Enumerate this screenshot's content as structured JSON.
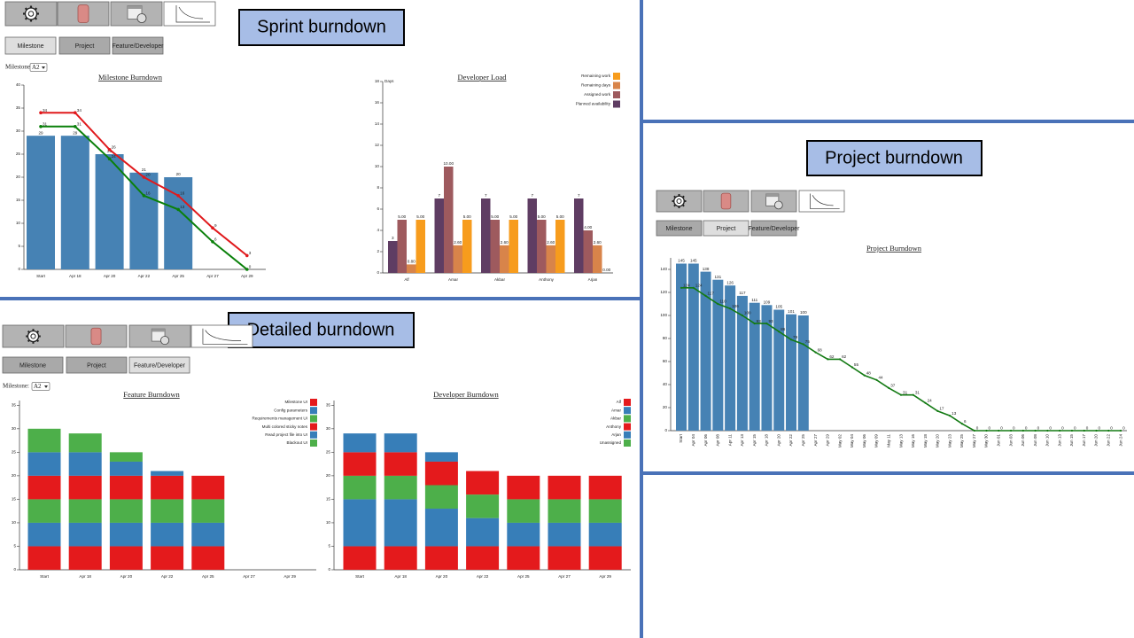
{
  "captions": [
    "Sprint burndown",
    "Detailed burndown",
    "Project burndown"
  ],
  "toolbars": [
    {
      "buttons": [
        "Milestone",
        "Project",
        "Feature/Developer"
      ]
    },
    {
      "buttons": [
        "Milestone",
        "Project",
        "Feature/Developer"
      ]
    },
    {
      "buttons": [
        "Milestone",
        "Project",
        "Feature/Developer"
      ]
    }
  ],
  "milestone_selectors": [
    {
      "label": "Milestone:",
      "value": "A2"
    },
    {
      "label": "Milestone:",
      "value": "A2"
    }
  ],
  "chart_data": [
    {
      "type": "combo",
      "title": "Milestone Burndown",
      "categories": [
        "Start",
        "Apr 18",
        "Apr 20",
        "Apr 22",
        "Apr 25",
        "Apr 27",
        "Apr 29"
      ],
      "series": [
        {
          "type": "bar",
          "color": "#4682b4",
          "values": [
            29,
            29,
            25,
            21,
            20,
            null,
            null
          ]
        },
        {
          "type": "line",
          "color": "#e0191c",
          "values": [
            34,
            34,
            26,
            20,
            16,
            9,
            3
          ]
        },
        {
          "type": "line",
          "color": "#0a800a",
          "values": [
            31,
            31,
            24,
            16,
            13,
            6,
            0
          ]
        }
      ],
      "ylim": [
        0,
        40
      ],
      "yticks": [
        0,
        5,
        10,
        15,
        20,
        25,
        30,
        35,
        40
      ],
      "data_labels": true
    },
    {
      "type": "grouped_bar",
      "title": "Developer Load",
      "y_label": "Days",
      "categories": [
        "Alf",
        "Amar",
        "Akbar",
        "Anthony",
        "Arjan"
      ],
      "series": [
        {
          "name": "Planned availability",
          "color": "#5f3d63",
          "values": [
            3,
            7,
            7,
            7,
            7
          ]
        },
        {
          "name": "Assigned work",
          "color": "#9e5a5e",
          "values": [
            5,
            10,
            5,
            5,
            4
          ],
          "value_labels": [
            "5.00",
            "10.00",
            "5.00",
            "5.00",
            "4.00"
          ]
        },
        {
          "name": "Remaining days",
          "color": "#d8844a",
          "values": [
            0.8,
            2.6,
            2.6,
            2.6,
            2.6
          ],
          "value_labels": [
            "0.80",
            "2.60",
            "2.60",
            "2.60",
            "2.60"
          ]
        },
        {
          "name": "Remaining work",
          "color": "#f79c1d",
          "values": [
            5,
            5,
            5,
            5,
            0
          ],
          "value_labels": [
            "5.00",
            "5.00",
            "5.00",
            "5.00",
            "0.00"
          ]
        }
      ],
      "ylim": [
        0,
        18
      ],
      "yticks": [
        0,
        2,
        4,
        6,
        8,
        10,
        12,
        14,
        16,
        18
      ],
      "data_labels": true,
      "legend": "top-right"
    },
    {
      "type": "stacked_bar",
      "title": "Feature Burndown",
      "categories": [
        "Start",
        "Apr 18",
        "Apr 20",
        "Apr 22",
        "Apr 25",
        "Apr 27",
        "Apr 29"
      ],
      "series": [
        {
          "name": "Milestone UI",
          "color": "#e41a1c",
          "values": [
            5,
            5,
            5,
            5,
            5,
            null,
            null
          ]
        },
        {
          "name": "Config parameters",
          "color": "#377eb8",
          "values": [
            5,
            5,
            5,
            5,
            5,
            null,
            null
          ]
        },
        {
          "name": "Requirements management UI",
          "color": "#4daf4a",
          "values": [
            5,
            5,
            5,
            5,
            5,
            null,
            null
          ]
        },
        {
          "name": "Multi colored sticky notes",
          "color": "#e41a1c",
          "values": [
            5,
            5,
            5,
            5,
            5,
            null,
            null
          ]
        },
        {
          "name": "Read project file into UI",
          "color": "#377eb8",
          "values": [
            5,
            5,
            3,
            1,
            0,
            null,
            null
          ]
        },
        {
          "name": "Blackout UI",
          "color": "#4daf4a",
          "values": [
            5,
            4,
            2,
            0,
            0,
            null,
            null
          ]
        }
      ],
      "ylim": [
        0,
        36
      ],
      "yticks": [
        0,
        5,
        10,
        15,
        20,
        25,
        30,
        35
      ],
      "legend": "top-right"
    },
    {
      "type": "stacked_bar",
      "title": "Developer Burndown",
      "categories": [
        "Start",
        "Apr 18",
        "Apr 20",
        "Apr 22",
        "Apr 25",
        "Apr 27",
        "Apr 29"
      ],
      "series": [
        {
          "name": "Alf",
          "color": "#e41a1c",
          "values": [
            5,
            5,
            5,
            5,
            5,
            5,
            5
          ]
        },
        {
          "name": "Amar",
          "color": "#377eb8",
          "values": [
            10,
            10,
            8,
            6,
            5,
            5,
            5
          ]
        },
        {
          "name": "Akbar",
          "color": "#4daf4a",
          "values": [
            5,
            5,
            5,
            5,
            5,
            5,
            5
          ]
        },
        {
          "name": "Anthony",
          "color": "#e41a1c",
          "values": [
            5,
            5,
            5,
            5,
            5,
            5,
            5
          ]
        },
        {
          "name": "Arjan",
          "color": "#377eb8",
          "values": [
            4,
            4,
            2,
            0,
            0,
            0,
            0
          ]
        },
        {
          "name": "Unassigned",
          "color": "#4daf4a",
          "values": [
            0,
            0,
            0,
            0,
            0,
            0,
            0
          ]
        }
      ],
      "ylim": [
        0,
        36
      ],
      "yticks": [
        0,
        5,
        10,
        15,
        20,
        25,
        30,
        35
      ],
      "legend": "top-right"
    },
    {
      "type": "combo",
      "title": "Project Burndown",
      "categories": [
        "Start",
        "Apr 04",
        "Apr 06",
        "Apr 08",
        "Apr 11",
        "Apr 13",
        "Apr 15",
        "Apr 18",
        "Apr 20",
        "Apr 22",
        "Apr 25",
        "Apr 27",
        "Apr 29",
        "May 02",
        "May 04",
        "May 06",
        "May 09",
        "May 11",
        "May 13",
        "May 16",
        "May 18",
        "May 20",
        "May 23",
        "May 25",
        "May 27",
        "May 30",
        "Jun 01",
        "Jun 03",
        "Jun 06",
        "Jun 08",
        "Jun 10",
        "Jun 13",
        "Jun 15",
        "Jun 17",
        "Jun 20",
        "Jun 22",
        "Jun 24"
      ],
      "series": [
        {
          "type": "bar",
          "color": "#4682b4",
          "values": [
            145,
            145,
            138,
            131,
            126,
            117,
            111,
            109,
            105,
            101,
            100,
            null,
            null,
            null,
            null,
            null,
            null,
            null,
            null,
            null,
            null,
            null,
            null,
            null,
            null,
            null,
            null,
            null,
            null,
            null,
            null,
            null,
            null,
            null,
            null,
            null,
            null
          ]
        },
        {
          "type": "line",
          "color": "#137a13",
          "values": [
            124,
            124,
            117,
            110,
            106,
            100,
            93,
            93,
            86,
            79,
            75,
            68,
            62,
            62,
            55,
            48,
            44,
            37,
            31,
            31,
            24,
            17,
            13,
            6,
            0,
            0,
            0,
            0,
            0,
            0,
            0,
            0,
            0,
            0,
            0,
            0,
            0
          ]
        }
      ],
      "ylim": [
        0,
        150
      ],
      "yticks": [
        0,
        20,
        40,
        60,
        80,
        100,
        120,
        140
      ],
      "data_labels": true
    }
  ]
}
